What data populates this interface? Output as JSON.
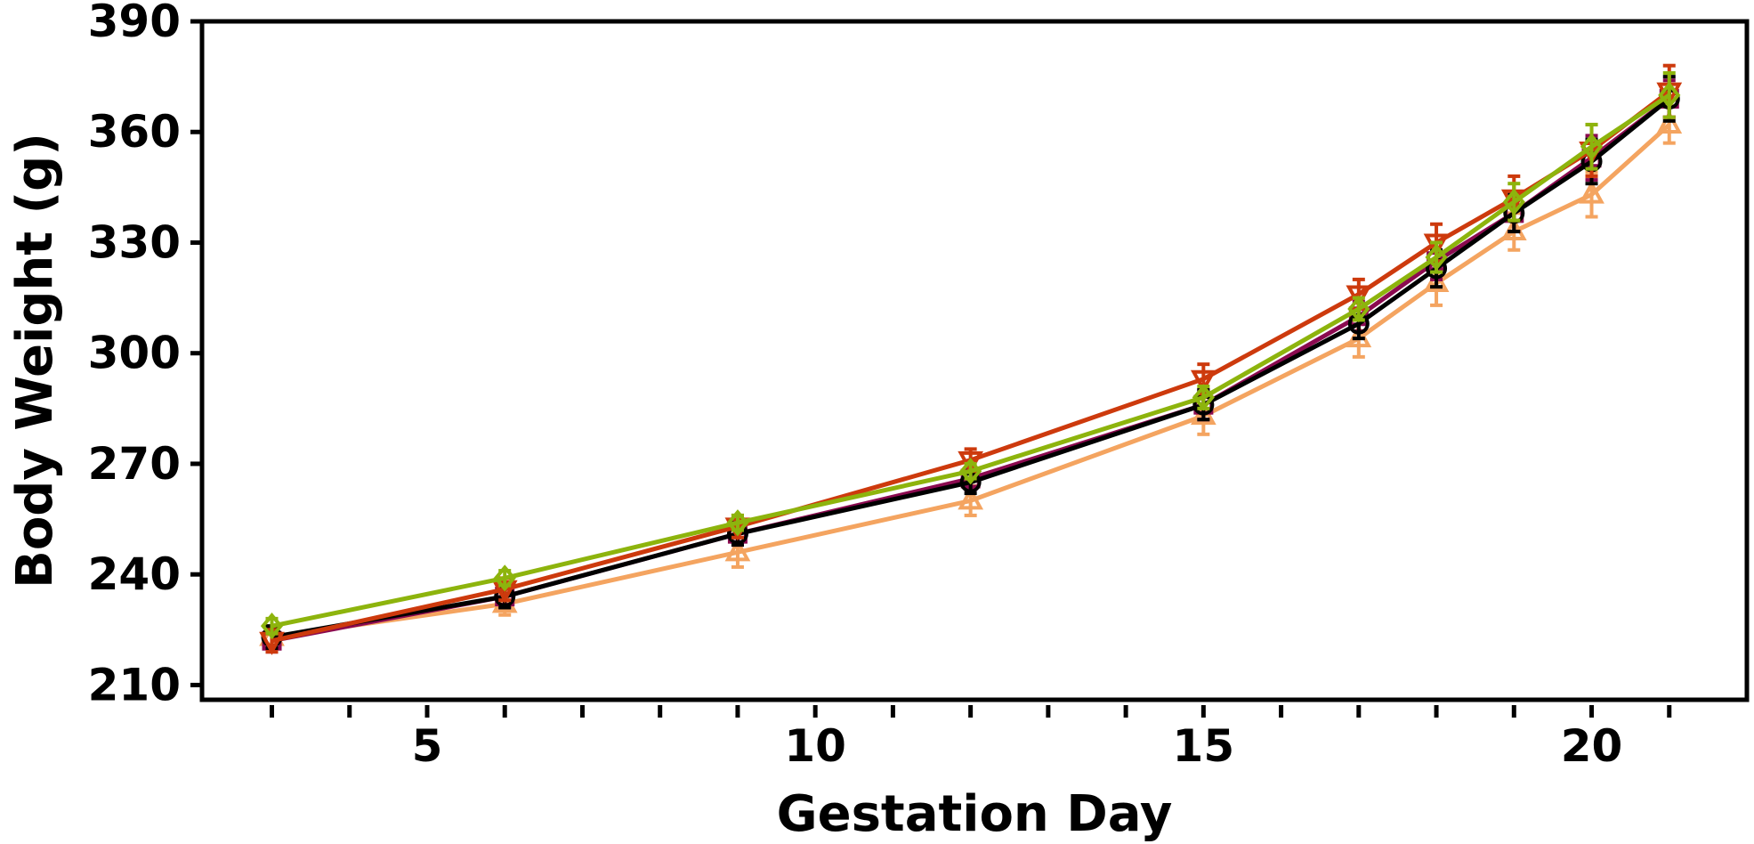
{
  "chart_data": {
    "type": "line",
    "title": "",
    "xlabel": "Gestation Day",
    "ylabel": "Body Weight (g)",
    "xlim": [
      2.1,
      22.0
    ],
    "ylim": [
      206,
      390
    ],
    "x_major_ticks": [
      5,
      10,
      15,
      20
    ],
    "x_minor_ticks": [
      3,
      4,
      6,
      7,
      8,
      9,
      11,
      12,
      13,
      14,
      16,
      17,
      18,
      19,
      21
    ],
    "y_ticks": [
      210,
      240,
      270,
      300,
      330,
      360,
      390
    ],
    "x_tick_labels": [
      "5",
      "10",
      "15",
      "20"
    ],
    "y_tick_labels": [
      "210",
      "240",
      "270",
      "300",
      "330",
      "360",
      "390"
    ],
    "grid": false,
    "legend": "none",
    "x": [
      3,
      6,
      9,
      12,
      15,
      17,
      18,
      19,
      20,
      21
    ],
    "series": [
      {
        "color": "#f4a460",
        "marker": "triangle-up",
        "values": [
          223,
          232,
          246,
          260,
          283,
          304,
          319,
          333,
          343,
          362
        ],
        "errors": [
          3,
          3,
          4,
          4,
          5,
          5,
          6,
          5,
          6,
          5
        ]
      },
      {
        "color": "#8b0a50",
        "marker": "square",
        "values": [
          222,
          234,
          251,
          266,
          286,
          310,
          325,
          338,
          353,
          369
        ],
        "errors": [
          3,
          3,
          3,
          3,
          4,
          4,
          5,
          5,
          6,
          5
        ]
      },
      {
        "color": "#000000",
        "marker": "circle",
        "values": [
          223,
          234,
          251,
          265,
          286,
          308,
          323,
          338,
          352,
          369
        ],
        "errors": [
          3,
          3,
          3,
          3,
          4,
          4,
          5,
          5,
          6,
          6
        ]
      },
      {
        "color": "#cd3a0d",
        "marker": "triangle-down",
        "values": [
          222,
          236,
          253,
          271,
          293,
          316,
          330,
          342,
          355,
          371
        ],
        "errors": [
          3,
          3,
          3,
          3,
          4,
          4,
          5,
          6,
          7,
          7
        ]
      },
      {
        "color": "#8db40d",
        "marker": "diamond",
        "values": [
          226,
          239,
          254,
          268,
          288,
          312,
          326,
          341,
          356,
          370
        ],
        "errors": [
          2,
          2,
          2,
          2,
          3,
          3,
          4,
          5,
          6,
          6
        ]
      }
    ]
  }
}
